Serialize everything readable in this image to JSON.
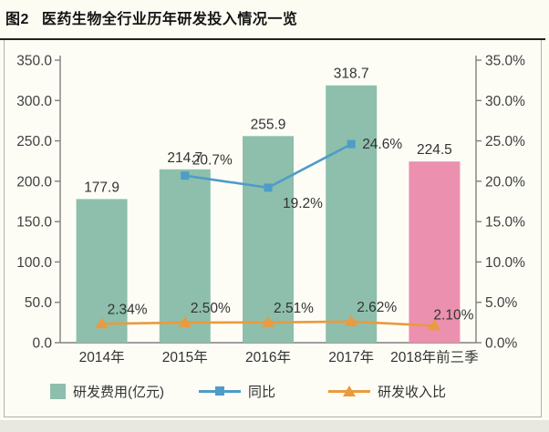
{
  "title": {
    "number": "图2",
    "text": "医药生物全行业历年研发投入情况一览"
  },
  "legend": {
    "bars": "研发费用(亿元)",
    "yoy": "同比",
    "ratio": "研发收入比"
  },
  "colors": {
    "bar_green": "#8dbfac",
    "bar_pink": "#ec90af",
    "line_blue": "#4e9cc8",
    "line_orange": "#eb9a3d",
    "axis_line": "#7f7f7f",
    "label_text": "#3f3f3f",
    "title_rule": "#24201e"
  },
  "chart_data": {
    "type": "combo-bar-line",
    "title": "图2 医药生物全行业历年研发投入情况一览",
    "categories": [
      "2014年",
      "2015年",
      "2016年",
      "2017年",
      "2018年前三季"
    ],
    "series": [
      {
        "name": "研发费用(亿元)",
        "type": "bar",
        "axis": "left",
        "values": [
          177.9,
          214.7,
          255.9,
          318.7,
          224.5
        ],
        "labels": [
          "177.9",
          "214.7",
          "255.9",
          "318.7",
          "224.5"
        ],
        "colors": [
          "#8dbfac",
          "#8dbfac",
          "#8dbfac",
          "#8dbfac",
          "#ec90af"
        ]
      },
      {
        "name": "同比",
        "type": "line",
        "axis": "right",
        "marker": "square",
        "color": "#4e9cc8",
        "values": [
          null,
          20.7,
          19.2,
          24.6,
          null
        ],
        "labels": [
          null,
          "20.7%",
          "19.2%",
          "24.6%",
          null
        ]
      },
      {
        "name": "研发收入比",
        "type": "line",
        "axis": "right",
        "marker": "triangle",
        "color": "#eb9a3d",
        "values": [
          2.34,
          2.5,
          2.51,
          2.62,
          2.1
        ],
        "labels": [
          "2.34%",
          "2.50%",
          "2.51%",
          "2.62%",
          "2.10%"
        ]
      }
    ],
    "left_axis": {
      "min": 0,
      "max": 350,
      "step": 50,
      "labels_top_to_bottom": [
        "350.0",
        "300.0",
        "250.0",
        "200.0",
        "150.0",
        "100.0",
        "50.0",
        "0.0"
      ]
    },
    "right_axis": {
      "min": 0,
      "max": 35,
      "step": 5,
      "labels_top_to_bottom": [
        "35.0%",
        "30.0%",
        "25.0%",
        "20.0%",
        "15.0%",
        "10.0%",
        "5.0%",
        "0.0%"
      ]
    },
    "grid": "off",
    "legend_position": "bottom"
  }
}
